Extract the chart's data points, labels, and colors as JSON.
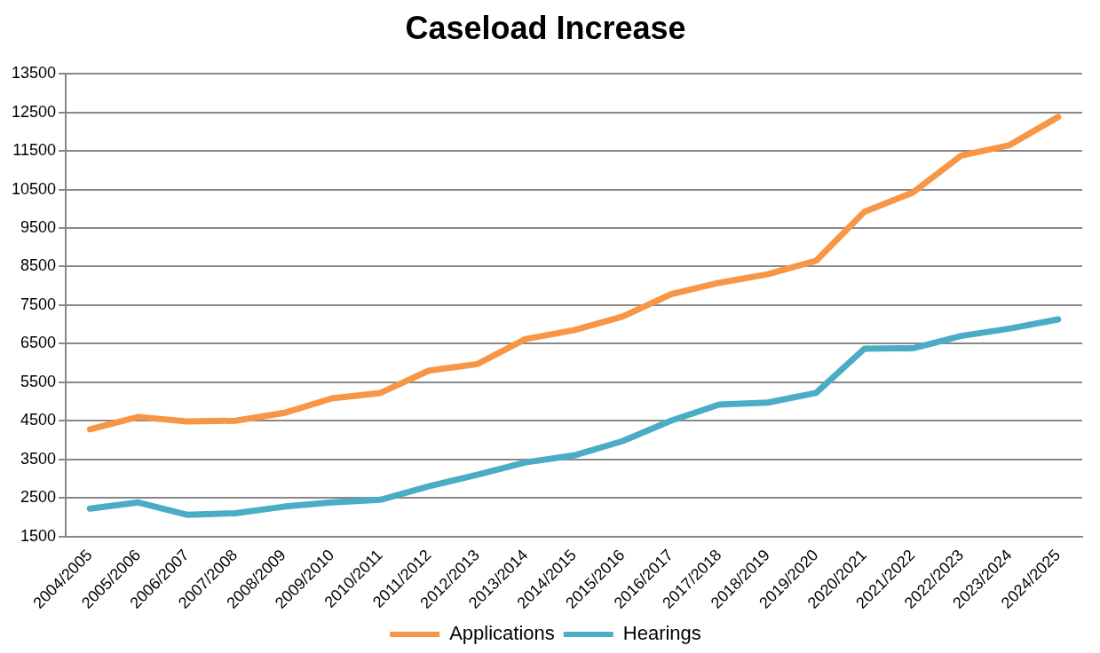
{
  "chart_data": {
    "type": "line",
    "title": "Caseload Increase",
    "categories": [
      "2004/2005",
      "2005/2006",
      "2006/2007",
      "2007/2008",
      "2008/2009",
      "2009/2010",
      "2010/2011",
      "2011/2012",
      "2012/2013",
      "2013/2014",
      "2014/2015",
      "2015/2016",
      "2016/2017",
      "2017/2018",
      "2018/2019",
      "2019/2020",
      "2020/2021",
      "2021/2022",
      "2022/2023",
      "2023/2024",
      "2024/2025"
    ],
    "series": [
      {
        "name": "Applications",
        "color": "#f79646",
        "values": [
          4280,
          4600,
          4480,
          4500,
          4700,
          5080,
          5220,
          5800,
          5970,
          6620,
          6850,
          7200,
          7780,
          8080,
          8300,
          8650,
          9920,
          10420,
          11380,
          11650,
          12380
        ]
      },
      {
        "name": "Hearings",
        "color": "#4bacc6",
        "values": [
          2220,
          2380,
          2060,
          2100,
          2270,
          2380,
          2450,
          2800,
          3100,
          3420,
          3600,
          3970,
          4500,
          4920,
          4970,
          5220,
          6370,
          6380,
          6700,
          6890,
          7130
        ]
      }
    ],
    "ylim": [
      1500,
      13500
    ],
    "yticks": [
      1500,
      2500,
      3500,
      4500,
      5500,
      6500,
      7500,
      8500,
      9500,
      10500,
      11500,
      12500,
      13500
    ],
    "grid": "y",
    "legend": "bottom",
    "marker": "none",
    "line_style": "solid"
  }
}
